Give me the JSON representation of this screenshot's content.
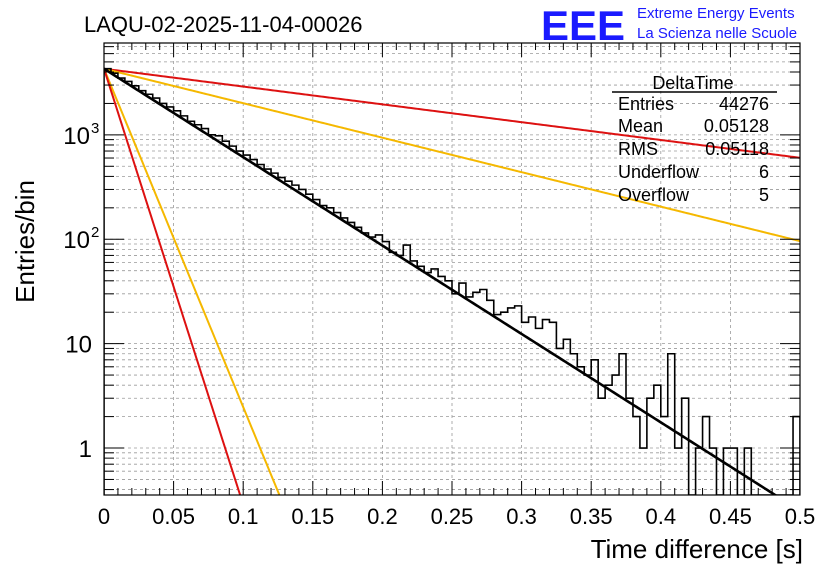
{
  "chart_data": {
    "type": "histogram",
    "title": "LAQU-02-2025-11-04-00026",
    "xlabel": "Time difference [s]",
    "ylabel": "Entries/bin",
    "xlim": [
      0,
      0.5
    ],
    "ylim_log10": [
      -0.45,
      3.88
    ],
    "yscale": "log",
    "grid": true,
    "x_ticks": [
      {
        "value": 0,
        "label": "0"
      },
      {
        "value": 0.05,
        "label": "0.05"
      },
      {
        "value": 0.1,
        "label": "0.1"
      },
      {
        "value": 0.15,
        "label": "0.15"
      },
      {
        "value": 0.2,
        "label": "0.2"
      },
      {
        "value": 0.25,
        "label": "0.25"
      },
      {
        "value": 0.3,
        "label": "0.3"
      },
      {
        "value": 0.35,
        "label": "0.35"
      },
      {
        "value": 0.4,
        "label": "0.4"
      },
      {
        "value": 0.45,
        "label": "0.45"
      },
      {
        "value": 0.5,
        "label": "0.5"
      }
    ],
    "y_ticks": [
      {
        "value": 1,
        "base": "1",
        "exp": ""
      },
      {
        "value": 10,
        "base": "10",
        "exp": ""
      },
      {
        "value": 100,
        "base": "10",
        "exp": "2"
      },
      {
        "value": 1000,
        "base": "10",
        "exp": "3"
      }
    ],
    "histogram": {
      "bin_width": 0.005,
      "bin_low_edges": [
        0.0,
        0.005,
        0.01,
        0.015,
        0.02,
        0.025,
        0.03,
        0.035,
        0.04,
        0.045,
        0.05,
        0.055,
        0.06,
        0.065,
        0.07,
        0.075,
        0.08,
        0.085,
        0.09,
        0.095,
        0.1,
        0.105,
        0.11,
        0.115,
        0.12,
        0.125,
        0.13,
        0.135,
        0.14,
        0.145,
        0.15,
        0.155,
        0.16,
        0.165,
        0.17,
        0.175,
        0.18,
        0.185,
        0.19,
        0.195,
        0.2,
        0.205,
        0.21,
        0.215,
        0.22,
        0.225,
        0.23,
        0.235,
        0.24,
        0.245,
        0.25,
        0.255,
        0.26,
        0.265,
        0.27,
        0.275,
        0.28,
        0.285,
        0.29,
        0.295,
        0.3,
        0.305,
        0.31,
        0.315,
        0.32,
        0.325,
        0.33,
        0.335,
        0.34,
        0.345,
        0.35,
        0.355,
        0.36,
        0.365,
        0.37,
        0.375,
        0.38,
        0.385,
        0.39,
        0.395,
        0.4,
        0.405,
        0.41,
        0.415,
        0.42,
        0.425,
        0.43,
        0.435,
        0.44,
        0.445,
        0.45,
        0.455,
        0.46,
        0.465,
        0.47,
        0.475,
        0.48,
        0.485,
        0.49,
        0.495
      ],
      "counts": [
        4300,
        3900,
        3500,
        3250,
        2950,
        2650,
        2450,
        2250,
        2000,
        1850,
        1700,
        1520,
        1350,
        1250,
        1150,
        1000,
        980,
        870,
        780,
        700,
        640,
        580,
        520,
        470,
        430,
        390,
        360,
        330,
        300,
        270,
        240,
        210,
        200,
        180,
        160,
        145,
        130,
        115,
        105,
        110,
        95,
        75,
        70,
        88,
        62,
        55,
        48,
        52,
        44,
        40,
        30,
        38,
        28,
        31,
        33,
        26,
        19,
        20,
        22,
        23,
        16,
        18,
        14,
        17,
        16,
        9,
        11,
        8,
        6,
        5,
        7,
        3,
        4,
        5,
        8,
        3,
        2,
        1,
        3,
        4,
        2,
        8,
        1,
        3,
        0.1,
        1,
        2,
        1,
        0.1,
        1,
        1,
        0.1,
        1,
        0.1,
        0.1,
        0.1,
        0.1,
        0.1,
        0.1,
        2
      ]
    },
    "series": [
      {
        "name": "fit",
        "color": "#000000",
        "A": 4300,
        "tau": 0.05128
      },
      {
        "name": "red-steep",
        "color": "#dd1111",
        "A": 4300,
        "tau": 0.0104
      },
      {
        "name": "orange-steep",
        "color": "#f5b800",
        "A": 4300,
        "tau": 0.0134
      },
      {
        "name": "orange-shallow",
        "color": "#f5b800",
        "A": 4300,
        "tau": 0.1315
      },
      {
        "name": "red-shallow",
        "color": "#dd1111",
        "A": 4300,
        "tau": 0.2545
      }
    ]
  },
  "stats_box": {
    "title": "DeltaTime",
    "rows": [
      {
        "label": "Entries",
        "value": "44276"
      },
      {
        "label": "Mean",
        "value": "0.05128"
      },
      {
        "label": "RMS",
        "value": "0.05118"
      },
      {
        "label": "Underflow",
        "value": "6"
      },
      {
        "label": "Overflow",
        "value": "5"
      }
    ]
  },
  "logo": {
    "mark": "EEE",
    "line1": "Extreme Energy Events",
    "line2": "La Scienza nelle Scuole",
    "color": "#1a1aff"
  }
}
